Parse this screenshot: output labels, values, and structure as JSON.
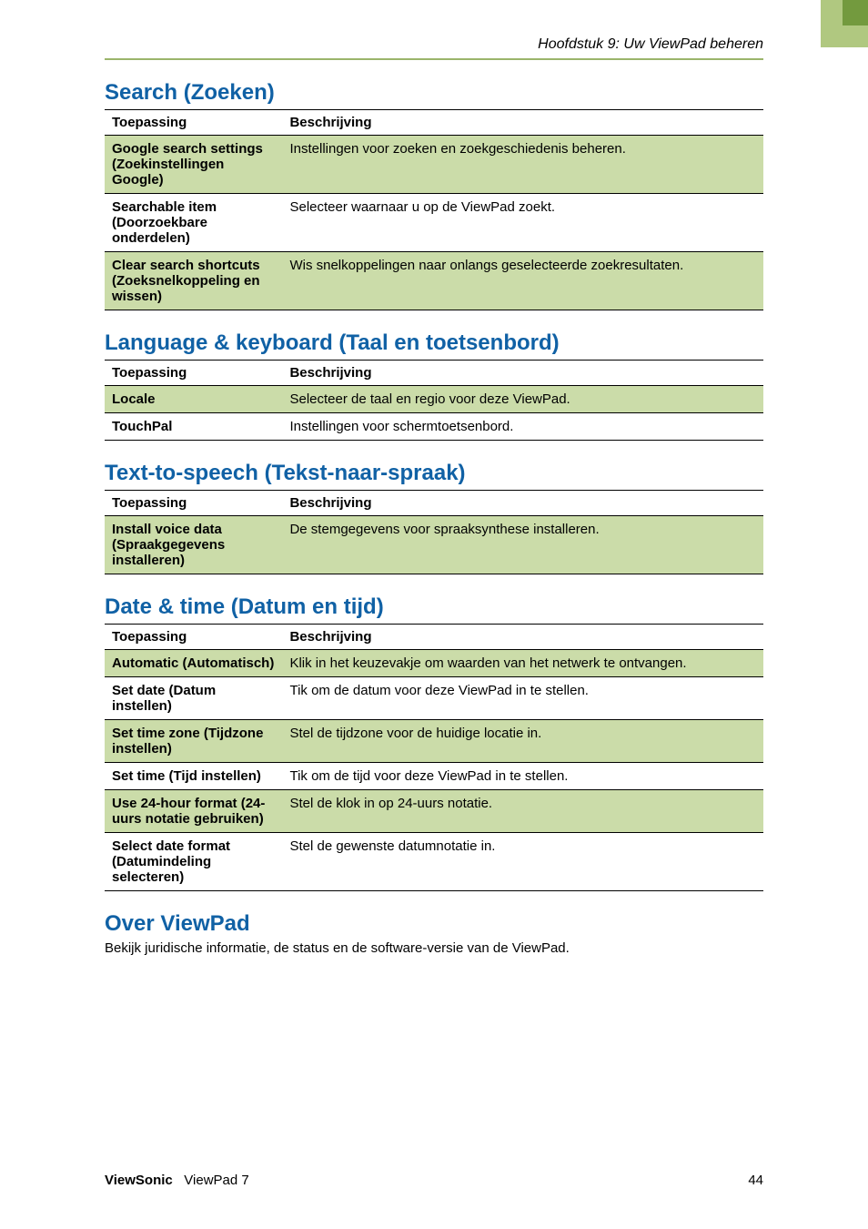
{
  "running_head": "Hoofdstuk 9: Uw ViewPad beheren",
  "colors": {
    "section_title": "#1061A5",
    "table_shade": "#CBDCA9",
    "rule": "#9BB56B",
    "tab_light": "#B0C880",
    "tab_dark": "#739A3E"
  },
  "sections": {
    "search": {
      "title": "Search (Zoeken)",
      "header_app": "Toepassing",
      "header_desc": "Beschrijving",
      "rows": [
        {
          "label": "Google search settings (Zoekinstellingen Google)",
          "desc": "Instellingen voor zoeken en zoekgeschiedenis beheren."
        },
        {
          "label": "Searchable item (Doorzoekbare onderdelen)",
          "desc": "Selecteer waarnaar u op de ViewPad zoekt."
        },
        {
          "label": "Clear search shortcuts (Zoeksnelkoppeling en wissen)",
          "desc": "Wis snelkoppelingen naar onlangs geselecteerde zoekresultaten."
        }
      ]
    },
    "language": {
      "title": "Language & keyboard (Taal en toetsenbord)",
      "header_app": "Toepassing",
      "header_desc": "Beschrijving",
      "rows": [
        {
          "label": "Locale",
          "desc": "Selecteer de taal en regio voor deze ViewPad."
        },
        {
          "label": "TouchPal",
          "desc": "Instellingen voor schermtoetsenbord."
        }
      ]
    },
    "tts": {
      "title": "Text-to-speech (Tekst-naar-spraak)",
      "header_app": "Toepassing",
      "header_desc": "Beschrijving",
      "rows": [
        {
          "label": "Install voice data (Spraakgegevens installeren)",
          "desc": "De stemgegevens voor spraaksynthese installeren."
        }
      ]
    },
    "datetime": {
      "title": "Date & time (Datum en tijd)",
      "header_app": "Toepassing",
      "header_desc": "Beschrijving",
      "rows": [
        {
          "label": "Automatic (Automatisch)",
          "desc": "Klik in het keuzevakje om waarden van het netwerk te ontvangen."
        },
        {
          "label": "Set date (Datum instellen)",
          "desc": "Tik om de datum voor deze ViewPad in te stellen."
        },
        {
          "label": "Set time zone (Tijdzone instellen)",
          "desc": "Stel de tijdzone voor de huidige locatie in."
        },
        {
          "label": "Set time (Tijd instellen)",
          "desc": "Tik om de tijd voor deze ViewPad in te stellen."
        },
        {
          "label": "Use 24-hour format (24-uurs notatie gebruiken)",
          "desc": "Stel de klok in op 24-uurs notatie."
        },
        {
          "label": "Select date format (Datumindeling selecteren)",
          "desc": "Stel de gewenste datumnotatie in."
        }
      ]
    },
    "about": {
      "title": "Over ViewPad",
      "body": "Bekijk juridische informatie, de status en de software-versie van de ViewPad."
    }
  },
  "footer": {
    "brand": "ViewSonic",
    "product": "ViewPad 7",
    "page": "44"
  }
}
